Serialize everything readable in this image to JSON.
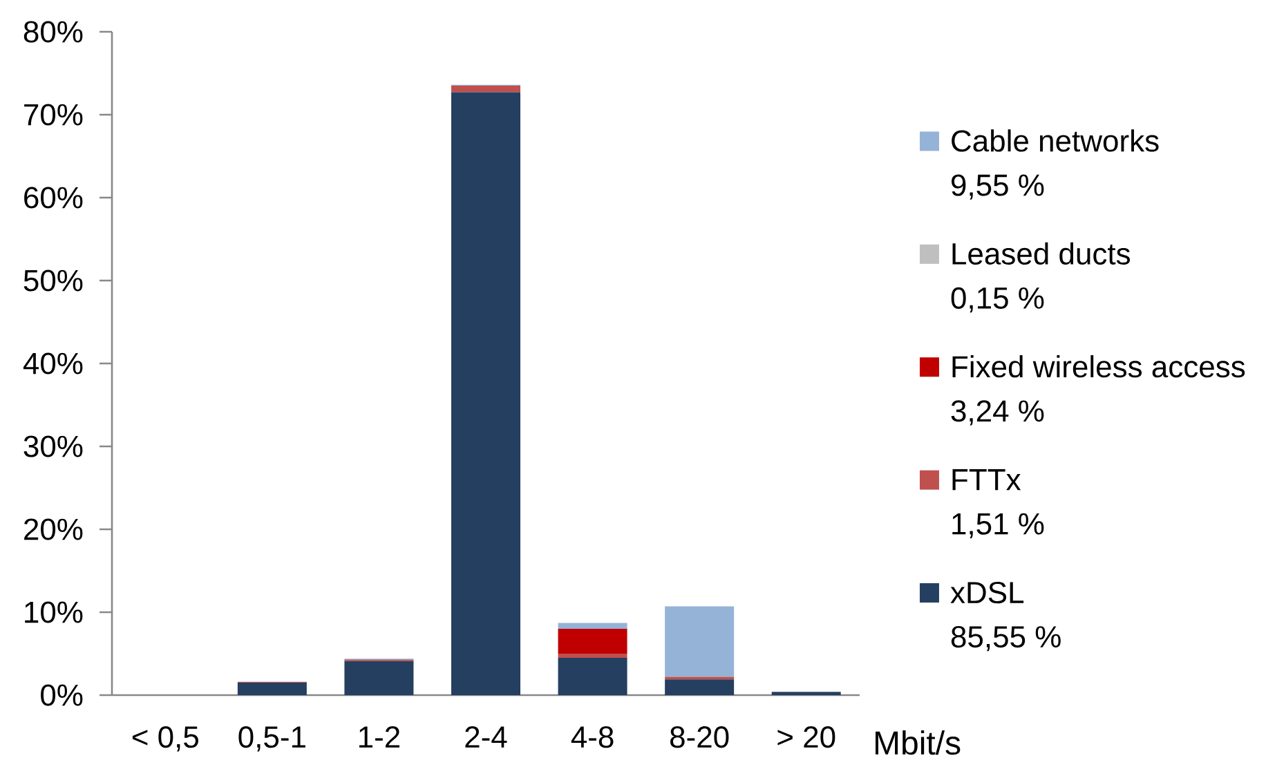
{
  "chart_data": {
    "type": "bar",
    "stacked": true,
    "categories": [
      "< 0,5",
      "0,5-1",
      "1-2",
      "2-4",
      "4-8",
      "8-20",
      "> 20"
    ],
    "xlabel": "Mbit/s",
    "series": [
      {
        "name": "xDSL",
        "color": "#243f60",
        "values": [
          0,
          1.5,
          4.1,
          72.7,
          4.5,
          1.9,
          0.4
        ]
      },
      {
        "name": "FTTx",
        "color": "#c0504d",
        "values": [
          0,
          0.1,
          0.2,
          0.8,
          0.5,
          0.3,
          0
        ]
      },
      {
        "name": "Fixed wireless access",
        "color": "#c00000",
        "values": [
          0,
          0,
          0,
          0,
          3.0,
          0,
          0
        ]
      },
      {
        "name": "Leased ducts",
        "color": "#bfbfbf",
        "values": [
          0,
          0,
          0,
          0,
          0,
          0,
          0
        ]
      },
      {
        "name": "Cable networks",
        "color": "#95b3d7",
        "values": [
          0,
          0,
          0.1,
          0.1,
          0.7,
          8.5,
          0
        ]
      }
    ],
    "ylim": [
      0,
      80
    ],
    "yticks": [
      {
        "value": 0,
        "label": "0%"
      },
      {
        "value": 10,
        "label": "10%"
      },
      {
        "value": 20,
        "label": "20%"
      },
      {
        "value": 30,
        "label": "30%"
      },
      {
        "value": 40,
        "label": "40%"
      },
      {
        "value": 50,
        "label": "50%"
      },
      {
        "value": 60,
        "label": "60%"
      },
      {
        "value": 70,
        "label": "70%"
      },
      {
        "value": 80,
        "label": "80%"
      }
    ],
    "legend": "right",
    "annotations": [
      "85,55 %",
      "1,51 %",
      "3,24 %",
      "0,15 %",
      "9,55 %"
    ]
  }
}
